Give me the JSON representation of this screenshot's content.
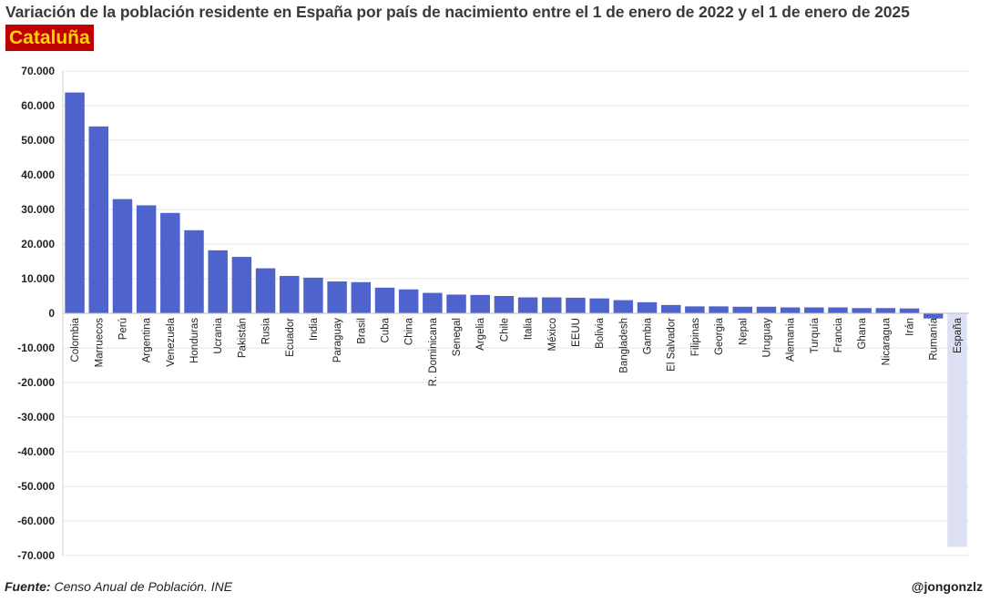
{
  "title": "Variación de la población residente en España por país de nacimiento entre el 1 de enero de 2022 y el 1 de enero de 2025",
  "region": "Cataluña",
  "footer": {
    "source_label": "Fuente:",
    "source_text": "Censo Anual de Población. INE",
    "handle": "@jongonzlz"
  },
  "colors": {
    "bar": "#4f63cc",
    "highlight": "#dde0f3",
    "region_bg": "#c00000",
    "region_text": "#ffd400",
    "grid": "#e4e4e4"
  },
  "chart_data": {
    "type": "bar",
    "title": "Variación de la población residente en España por país de nacimiento entre el 1 de enero de 2022 y el 1 de enero de 2025",
    "ylim": [
      -70000,
      70000
    ],
    "ytick_step": 10000,
    "yticks": [
      "70.000",
      "60.000",
      "50.000",
      "40.000",
      "30.000",
      "20.000",
      "10.000",
      "0",
      "-10.000",
      "-20.000",
      "-30.000",
      "-40.000",
      "-50.000",
      "-60.000",
      "-70.000"
    ],
    "grid": true,
    "categories": [
      "Colombia",
      "Marruecos",
      "Perú",
      "Argentina",
      "Venezuela",
      "Honduras",
      "Ucrania",
      "Pakistán",
      "Rusia",
      "Ecuador",
      "India",
      "Paraguay",
      "Brasil",
      "Cuba",
      "China",
      "R. Dominicana",
      "Senegal",
      "Argelia",
      "Chile",
      "Italia",
      "México",
      "EEUU",
      "Bolivia",
      "Bangladesh",
      "Gambia",
      "El Salvador",
      "Filipinas",
      "Georgia",
      "Nepal",
      "Uruguay",
      "Alemania",
      "Turquía",
      "Francia",
      "Ghana",
      "Nicaragua",
      "Irán",
      "Rumanía",
      "España"
    ],
    "values": [
      63800,
      54000,
      33000,
      31200,
      29000,
      24000,
      18200,
      16300,
      13000,
      10800,
      10300,
      9200,
      9000,
      7400,
      6900,
      5900,
      5400,
      5300,
      5000,
      4600,
      4600,
      4500,
      4300,
      3800,
      3200,
      2400,
      2000,
      2000,
      1900,
      1900,
      1700,
      1700,
      1700,
      1500,
      1500,
      1400,
      -1500,
      -67500
    ],
    "highlight_category": "España"
  }
}
